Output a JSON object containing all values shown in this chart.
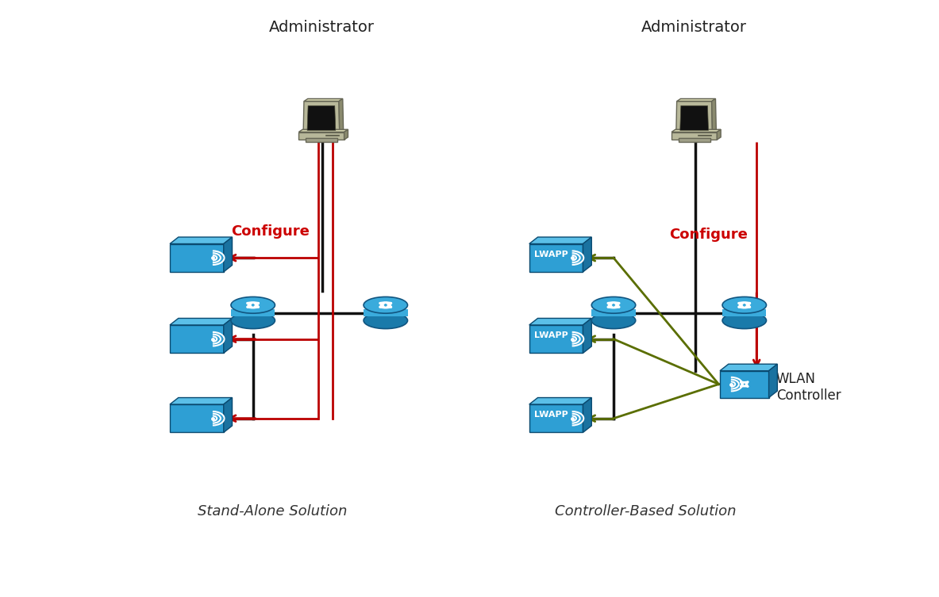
{
  "bg_color": "#ffffff",
  "left_title": "Stand-Alone Solution",
  "right_title": "Controller-Based Solution",
  "admin_label": "Administrator",
  "configure_color": "#cc0000",
  "line_color_black": "#111111",
  "line_color_red": "#bb0000",
  "line_color_green": "#5a6e00",
  "wlan_controller_label": "WLAN\nController",
  "lwapp_label": "LWAPP",
  "configure_label": "Configure",
  "computer_body": "#b8b89a",
  "computer_dark": "#8a8a6e",
  "computer_screen_bg": "#000000",
  "ap_front": "#2e9fd4",
  "ap_top": "#5bbfe8",
  "ap_side": "#1a72a0",
  "ap_wave": "#ffffff",
  "router_main": "#3aabdc",
  "router_dark": "#1a7aaa",
  "router_arrow": "#ffffff"
}
